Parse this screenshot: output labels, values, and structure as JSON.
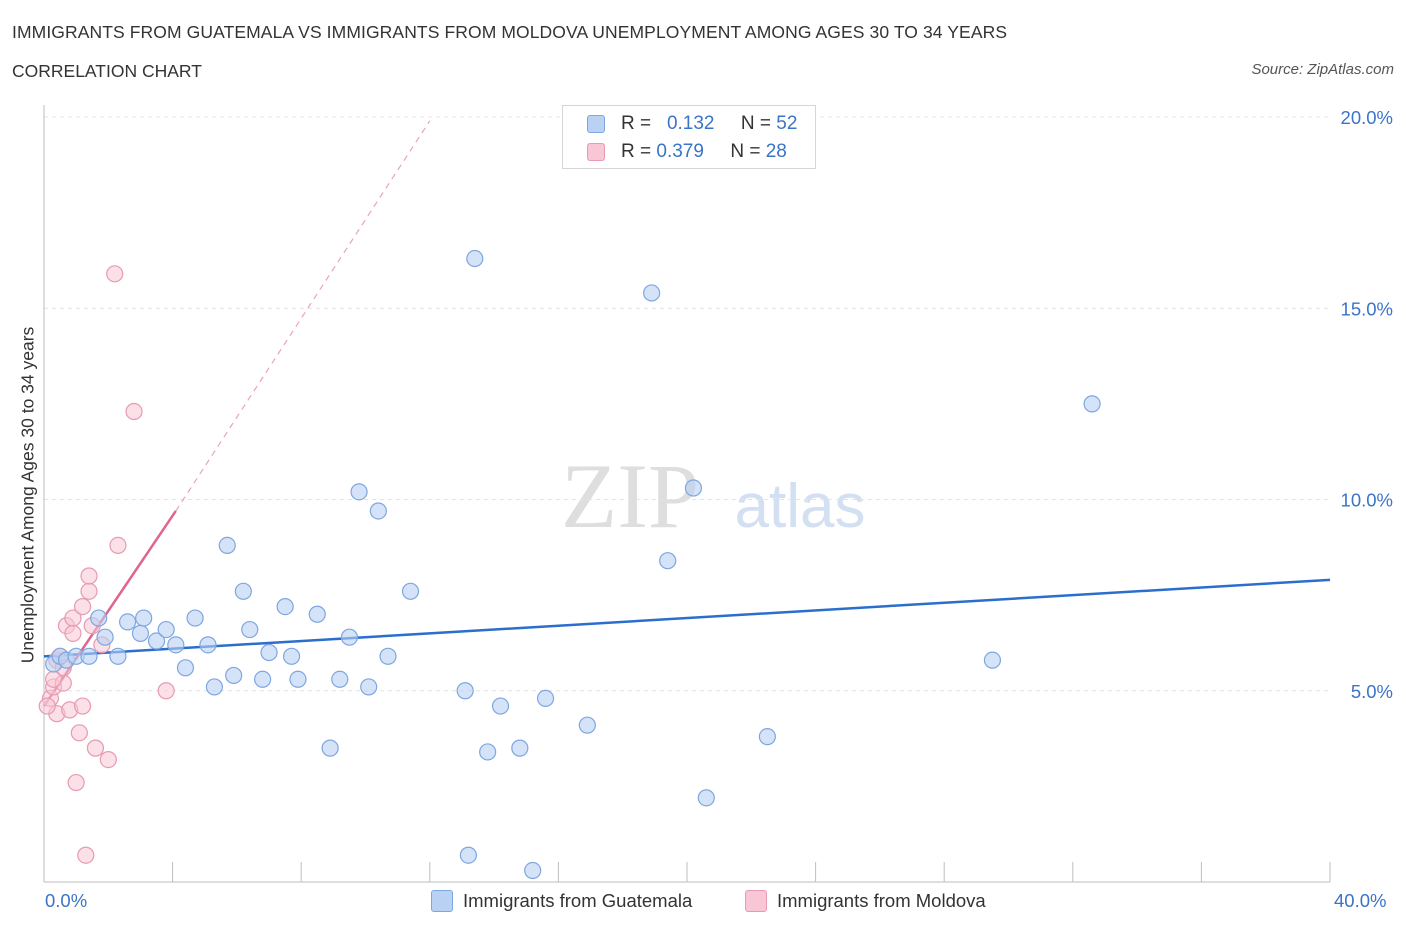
{
  "header": {
    "title": "IMMIGRANTS FROM GUATEMALA VS IMMIGRANTS FROM MOLDOVA UNEMPLOYMENT AMONG AGES 30 TO 34 YEARS",
    "subtitle": "CORRELATION CHART",
    "source": "Source: ZipAtlas.com"
  },
  "colors": {
    "guatemala_fill": "#b9d1f3",
    "guatemala_stroke": "#7ea6e0",
    "guatemala_line": "#2a6fcc",
    "moldova_fill": "#f8c6d4",
    "moldova_stroke": "#e79ab1",
    "moldova_line": "#e0658e",
    "axis_text": "#3a74c9",
    "grid": "#e4e4e4"
  },
  "legend": {
    "rows": [
      {
        "r_label": "R =",
        "r_value": "0.132",
        "n_label": "N =",
        "n_value": "52"
      },
      {
        "r_label": "R =",
        "r_value": "0.379",
        "n_label": "N =",
        "n_value": "28"
      }
    ]
  },
  "bottom_legend": {
    "guatemala": "Immigrants from Guatemala",
    "moldova": "Immigrants from Moldova"
  },
  "watermark": {
    "zip": "ZIP",
    "atlas": "atlas"
  },
  "chart_data": {
    "type": "scatter",
    "title": "IMMIGRANTS FROM GUATEMALA VS IMMIGRANTS FROM MOLDOVA UNEMPLOYMENT AMONG AGES 30 TO 34 YEARS",
    "xlabel": "",
    "ylabel": "Unemployment Among Ages 30 to 34 years",
    "xlim": [
      0,
      40
    ],
    "ylim": [
      0,
      20
    ],
    "x_tick_labels": [
      "0.0%",
      "40.0%"
    ],
    "y_ticks": [
      5,
      10,
      15,
      20
    ],
    "y_tick_labels": [
      "5.0%",
      "10.0%",
      "15.0%",
      "20.0%"
    ],
    "series": [
      {
        "name": "Immigrants from Guatemala",
        "points": [
          [
            0.3,
            5.7
          ],
          [
            0.5,
            5.9
          ],
          [
            0.7,
            5.8
          ],
          [
            1.0,
            5.9
          ],
          [
            1.4,
            5.9
          ],
          [
            1.7,
            6.9
          ],
          [
            1.9,
            6.4
          ],
          [
            2.3,
            5.9
          ],
          [
            2.6,
            6.8
          ],
          [
            3.0,
            6.5
          ],
          [
            3.1,
            6.9
          ],
          [
            3.5,
            6.3
          ],
          [
            3.8,
            6.6
          ],
          [
            4.1,
            6.2
          ],
          [
            4.4,
            5.6
          ],
          [
            4.7,
            6.9
          ],
          [
            5.1,
            6.2
          ],
          [
            5.3,
            5.1
          ],
          [
            5.7,
            8.8
          ],
          [
            5.9,
            5.4
          ],
          [
            6.2,
            7.6
          ],
          [
            6.4,
            6.6
          ],
          [
            6.8,
            5.3
          ],
          [
            7.0,
            6.0
          ],
          [
            7.5,
            7.2
          ],
          [
            7.7,
            5.9
          ],
          [
            7.9,
            5.3
          ],
          [
            8.5,
            7.0
          ],
          [
            8.9,
            3.5
          ],
          [
            9.2,
            5.3
          ],
          [
            9.5,
            6.4
          ],
          [
            9.8,
            10.2
          ],
          [
            10.1,
            5.1
          ],
          [
            10.4,
            9.7
          ],
          [
            10.7,
            5.9
          ],
          [
            11.4,
            7.6
          ],
          [
            13.1,
            5.0
          ],
          [
            13.2,
            0.7
          ],
          [
            13.4,
            16.3
          ],
          [
            13.8,
            3.4
          ],
          [
            14.2,
            4.6
          ],
          [
            14.8,
            3.5
          ],
          [
            15.6,
            4.8
          ],
          [
            16.9,
            4.1
          ],
          [
            18.9,
            15.4
          ],
          [
            19.4,
            8.4
          ],
          [
            20.2,
            10.3
          ],
          [
            20.6,
            2.2
          ],
          [
            22.5,
            3.8
          ],
          [
            29.5,
            5.8
          ],
          [
            32.6,
            12.5
          ],
          [
            15.2,
            0.3
          ]
        ],
        "trend": {
          "x": [
            0,
            40
          ],
          "y": [
            5.9,
            7.9
          ]
        }
      },
      {
        "name": "Immigrants from Moldova",
        "points": [
          [
            0.2,
            4.8
          ],
          [
            0.3,
            5.1
          ],
          [
            0.4,
            5.8
          ],
          [
            0.4,
            4.4
          ],
          [
            0.5,
            5.9
          ],
          [
            0.6,
            5.2
          ],
          [
            0.6,
            5.6
          ],
          [
            0.7,
            6.7
          ],
          [
            0.8,
            4.5
          ],
          [
            0.9,
            6.5
          ],
          [
            0.9,
            6.9
          ],
          [
            1.0,
            2.6
          ],
          [
            1.1,
            3.9
          ],
          [
            1.2,
            4.6
          ],
          [
            1.2,
            7.2
          ],
          [
            1.3,
            0.7
          ],
          [
            1.4,
            7.6
          ],
          [
            1.4,
            8.0
          ],
          [
            1.5,
            6.7
          ],
          [
            1.6,
            3.5
          ],
          [
            1.8,
            6.2
          ],
          [
            2.0,
            3.2
          ],
          [
            2.2,
            15.9
          ],
          [
            2.3,
            8.8
          ],
          [
            2.8,
            12.3
          ],
          [
            3.8,
            5.0
          ],
          [
            0.1,
            4.6
          ],
          [
            0.3,
            5.3
          ]
        ],
        "trend": {
          "x": [
            0,
            4.1
          ],
          "y": [
            4.6,
            9.7
          ]
        },
        "trend_extension": {
          "x": [
            4.1,
            12
          ],
          "y": [
            9.7,
            19.9
          ]
        }
      }
    ]
  }
}
